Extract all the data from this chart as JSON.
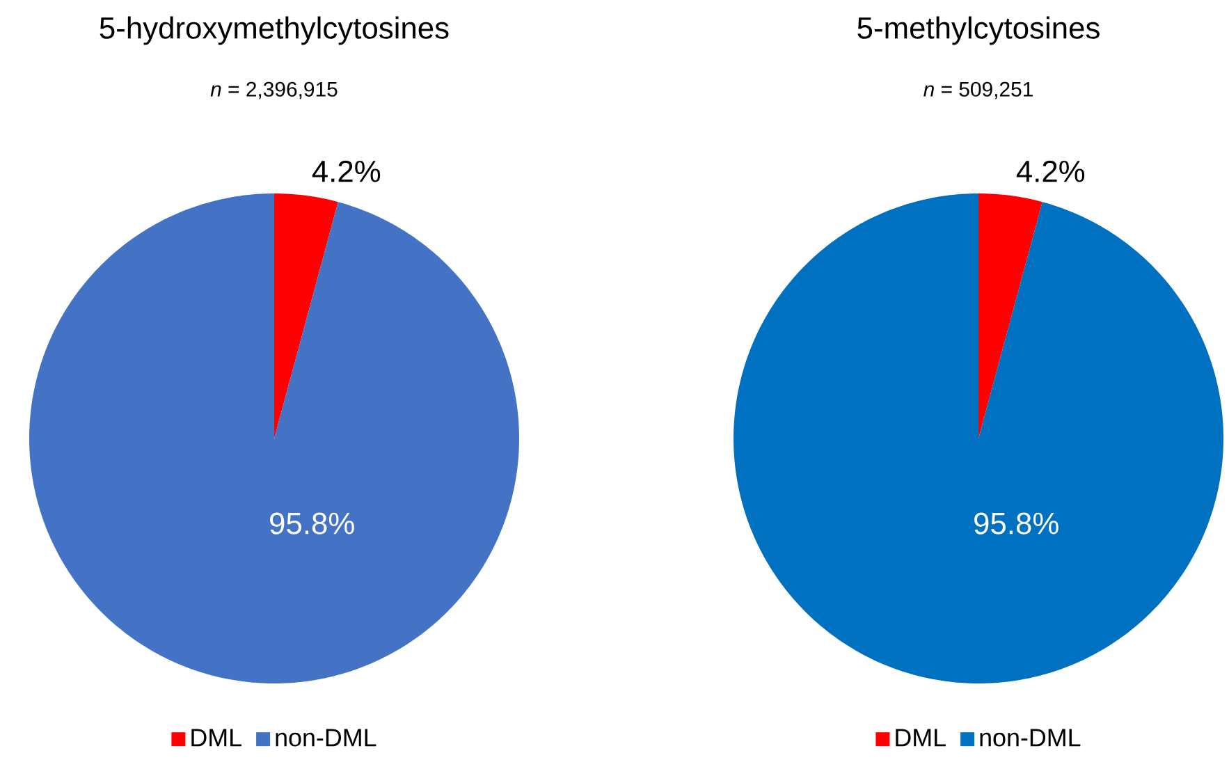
{
  "chart_data": [
    {
      "type": "pie",
      "title": "5-hydroxymethylcytosines",
      "subtitle": "*n* = 2,396,915",
      "categories": [
        "DML",
        "non-DML"
      ],
      "values": [
        4.2,
        95.8
      ],
      "value_labels": [
        "4.2%",
        "95.8%"
      ],
      "colors": [
        "#ff0000",
        "#4472c4"
      ],
      "legend": "bottom"
    },
    {
      "type": "pie",
      "title": "5-methylcytosines",
      "subtitle": "*n* = 509,251",
      "categories": [
        "DML",
        "non-DML"
      ],
      "values": [
        4.2,
        95.8
      ],
      "value_labels": [
        "4.2%",
        "95.8%"
      ],
      "colors": [
        "#ff0000",
        "#0070c0"
      ],
      "legend": "bottom"
    }
  ]
}
